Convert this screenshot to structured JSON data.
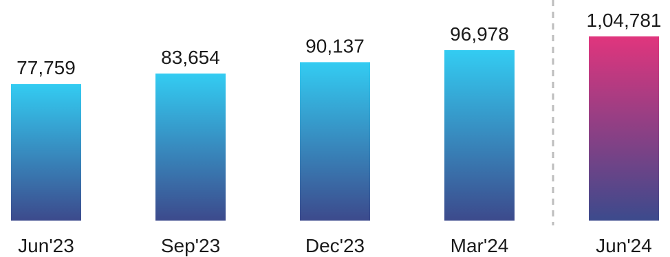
{
  "chart_data": {
    "type": "bar",
    "categories": [
      "Jun'23",
      "Sep'23",
      "Dec'23",
      "Mar'24",
      "Jun'24"
    ],
    "values": [
      77759,
      83654,
      90137,
      96978,
      104781
    ],
    "value_labels": [
      "77,759",
      "83,654",
      "90,137",
      "96,978",
      "1,04,781"
    ],
    "title": "",
    "xlabel": "",
    "ylabel": "",
    "ylim": [
      0,
      104781
    ],
    "grid": false,
    "legend": "none",
    "highlighted_category": "Jun'24",
    "separator_before": "Jun'24",
    "colors": {
      "bar_top": "#33CCF2",
      "bar_bottom": "#3C4A8C",
      "highlight_top": "#E0357D",
      "highlight_bottom": "#3C4A8C",
      "separator": "#BDBDBD",
      "text": "#1A1A1A"
    }
  }
}
